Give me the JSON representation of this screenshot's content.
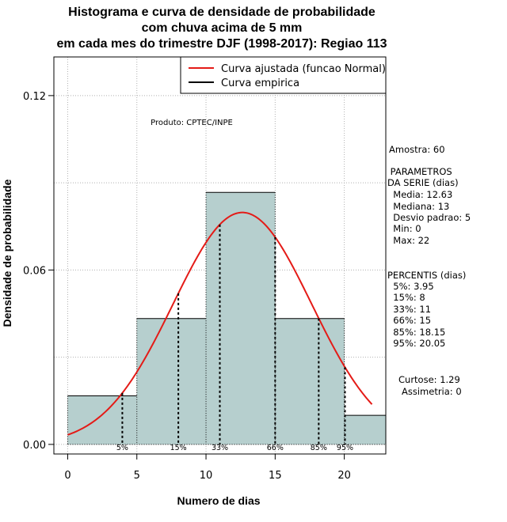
{
  "titles": [
    "Histograma e curva de densidade de probabilidade",
    "com chuva acima de 5 mm",
    "em cada mes do trimestre DJF (1998-2017): Regiao 113"
  ],
  "product_label": "Produto: CPTEC/INPE",
  "colors": {
    "bar_fill": "#b6cfce",
    "curve": "#e41b17",
    "grid": "#b0b0b0"
  },
  "chart_data": {
    "type": "bar",
    "bins": [
      [
        0,
        5
      ],
      [
        5,
        10
      ],
      [
        10,
        15
      ],
      [
        15,
        20
      ],
      [
        20,
        23
      ]
    ],
    "values": [
      0.0167,
      0.0433,
      0.0867,
      0.0433,
      0.01
    ],
    "xlabel": "Numero de dias",
    "ylabel": "Densidade de probabilidade",
    "xlim": [
      -1,
      23
    ],
    "ylim": [
      -0.0033,
      0.1333
    ],
    "xticks": [
      0,
      5,
      10,
      15,
      20
    ],
    "xtick_labels": [
      "0",
      "5",
      "10",
      "15",
      "20"
    ],
    "yticks": [
      0.0,
      0.06,
      0.12
    ],
    "ytick_labels": [
      "0.00",
      "0.06",
      "0.12"
    ],
    "fitted_curve": {
      "distribution": "Normal",
      "mean": 12.63,
      "sd": 5,
      "x_range": [
        0,
        22
      ]
    },
    "percentile_lines": [
      {
        "label": "5%",
        "x": 3.95
      },
      {
        "label": "15%",
        "x": 8
      },
      {
        "label": "33%",
        "x": 11
      },
      {
        "label": "66%",
        "x": 15
      },
      {
        "label": "85%",
        "x": 18.15
      },
      {
        "label": "95%",
        "x": 20.05
      }
    ],
    "legend": {
      "position": "top-right",
      "entries": [
        "Curva ajustada (funcao Normal)",
        "Curva empirica"
      ]
    }
  },
  "stats": {
    "sample": "Amostra: 60",
    "params_title": [
      " PARAMETROS",
      "DA SERIE (dias)"
    ],
    "params": [
      "  Media: 12.63",
      "  Mediana: 13",
      "  Desvio padrao: 5",
      "  Min: 0",
      "  Max: 22"
    ],
    "percentis_title": "PERCENTIS (dias)",
    "percentis": [
      "  5%: 3.95",
      "  15%: 8",
      "  33%: 11",
      "  66%: 15",
      "  85%: 18.15",
      "  95%: 20.05"
    ],
    "curtose": "Curtose: 1.29",
    "assimetria": "Assimetria: 0"
  }
}
